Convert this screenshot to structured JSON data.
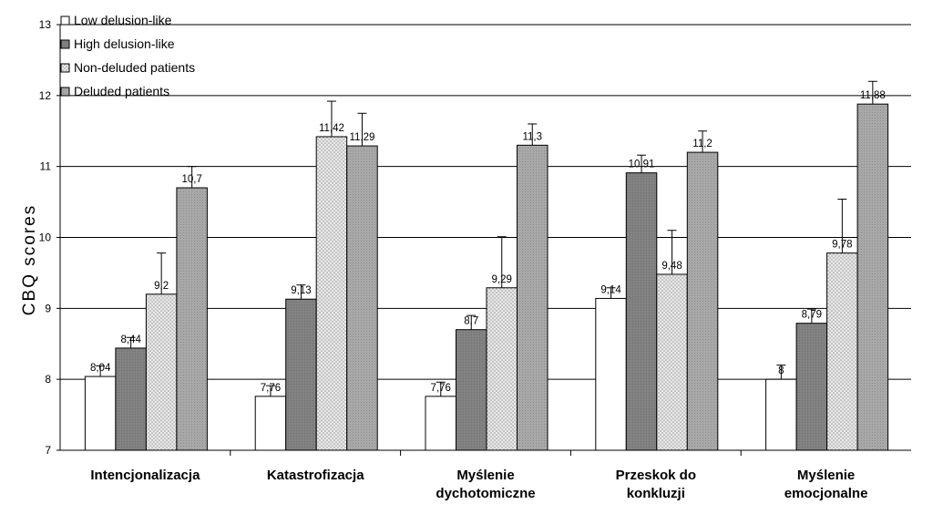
{
  "chart_data": {
    "type": "bar",
    "title": "",
    "xlabel": "",
    "ylabel": "CBQ scores",
    "ylim": [
      7,
      13
    ],
    "yticks": [
      "7",
      "8",
      "9",
      "10",
      "11",
      "12",
      "13"
    ],
    "grid": true,
    "legend_position": "top-left",
    "categories": [
      [
        "Intencjonalizacja"
      ],
      [
        "Katastrofizacja"
      ],
      [
        "Myślenie",
        "dychotomiczne"
      ],
      [
        "Przeskok do",
        "konkluzji"
      ],
      [
        "Myślenie",
        "emocjonalne"
      ]
    ],
    "series": [
      {
        "name": "Low delusion-like",
        "fill": "white",
        "values": [
          8.04,
          7.76,
          7.76,
          9.14,
          8.0
        ],
        "labels": [
          "8,04",
          "7,76",
          "7,76",
          "9,14",
          "8"
        ],
        "errors": [
          0.15,
          0.15,
          0.2,
          0.15,
          0.2
        ]
      },
      {
        "name": "High delusion-like",
        "fill": "darkgray",
        "values": [
          8.44,
          9.13,
          8.7,
          10.91,
          8.79
        ],
        "labels": [
          "8,44",
          "9,13",
          "8,7",
          "10,91",
          "8,79"
        ],
        "errors": [
          0.15,
          0.2,
          0.2,
          0.25,
          0.2
        ]
      },
      {
        "name": "Non-deluded patients",
        "fill": "dotted",
        "values": [
          9.2,
          11.42,
          9.29,
          9.48,
          9.78
        ],
        "labels": [
          "9,2",
          "11,42",
          "9,29",
          "9,48",
          "9,78"
        ],
        "errors": [
          0.58,
          0.5,
          0.72,
          0.62,
          0.76
        ]
      },
      {
        "name": "Deluded patients",
        "fill": "lightgray",
        "values": [
          10.7,
          11.29,
          11.3,
          11.2,
          11.88
        ],
        "labels": [
          "10,7",
          "11,29",
          "11,3",
          "11,2",
          "11,88"
        ],
        "errors": [
          0.3,
          0.46,
          0.3,
          0.3,
          0.32
        ]
      }
    ],
    "colors": {
      "white": "#ffffff",
      "darkgray": "#808080",
      "dotted": "#d9d9d9",
      "lightgray": "#a6a6a6",
      "grid": "#000000"
    }
  }
}
